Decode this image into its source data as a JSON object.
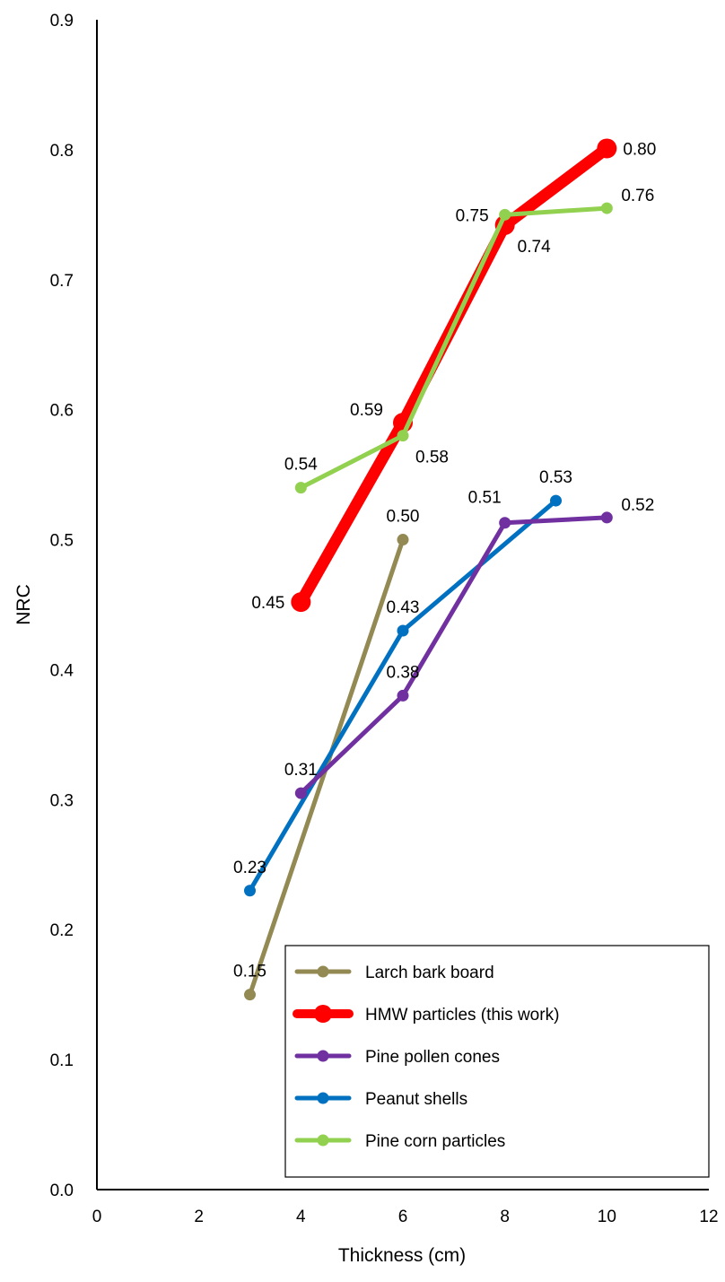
{
  "chart_data": {
    "type": "line",
    "title": "",
    "xlabel": "Thickness (cm)",
    "ylabel": "NRC",
    "xlim": [
      0,
      12
    ],
    "ylim": [
      0,
      0.9
    ],
    "xticks": [
      "0",
      "2",
      "4",
      "6",
      "8",
      "10",
      "12"
    ],
    "yticks": [
      "0.0",
      "0.1",
      "0.2",
      "0.3",
      "0.4",
      "0.5",
      "0.6",
      "0.7",
      "0.8",
      "0.9"
    ],
    "grid": false,
    "legend_position": "bottom-right",
    "series": [
      {
        "name": "Larch bark board",
        "color": "#938953",
        "weight": "normal",
        "points": [
          {
            "x": 3,
            "y": 0.15,
            "label": "0.15",
            "label_side": "above"
          },
          {
            "x": 6,
            "y": 0.5,
            "label": "0.50",
            "label_side": "above"
          }
        ]
      },
      {
        "name": "HMW particles (this work)",
        "color": "#ff0000",
        "weight": "bold",
        "points": [
          {
            "x": 4,
            "y": 0.452,
            "label": "0.45",
            "label_side": "left"
          },
          {
            "x": 6,
            "y": 0.59,
            "label": "0.59",
            "label_side": "upper-left"
          },
          {
            "x": 8,
            "y": 0.742,
            "label": "0.74",
            "label_side": "lower-right"
          },
          {
            "x": 10,
            "y": 0.801,
            "label": "0.80",
            "label_side": "right"
          }
        ]
      },
      {
        "name": "Pine pollen cones",
        "color": "#7030a0",
        "weight": "normal",
        "points": [
          {
            "x": 4,
            "y": 0.305,
            "label": "0.31",
            "label_side": "above"
          },
          {
            "x": 6,
            "y": 0.38,
            "label": "0.38",
            "label_side": "above"
          },
          {
            "x": 8,
            "y": 0.513,
            "label": "0.51",
            "label_side": "above-left"
          },
          {
            "x": 10,
            "y": 0.517,
            "label": "0.52",
            "label_side": "upper-right"
          }
        ]
      },
      {
        "name": "Peanut shells",
        "color": "#0070c0",
        "weight": "normal",
        "points": [
          {
            "x": 3,
            "y": 0.23,
            "label": "0.23",
            "label_side": "above"
          },
          {
            "x": 6,
            "y": 0.43,
            "label": "0.43",
            "label_side": "above"
          },
          {
            "x": 9,
            "y": 0.53,
            "label": "0.53",
            "label_side": "above"
          }
        ]
      },
      {
        "name": "Pine corn particles",
        "color": "#92d050",
        "weight": "normal",
        "points": [
          {
            "x": 4,
            "y": 0.54,
            "label": "0.54",
            "label_side": "above"
          },
          {
            "x": 6,
            "y": 0.58,
            "label": "0.58",
            "label_side": "lower-right"
          },
          {
            "x": 8,
            "y": 0.75,
            "label": "0.75",
            "label_side": "left"
          },
          {
            "x": 10,
            "y": 0.755,
            "label": "0.76",
            "label_side": "upper-right"
          }
        ]
      }
    ],
    "draw_order": [
      0,
      1,
      3,
      2,
      4
    ]
  }
}
